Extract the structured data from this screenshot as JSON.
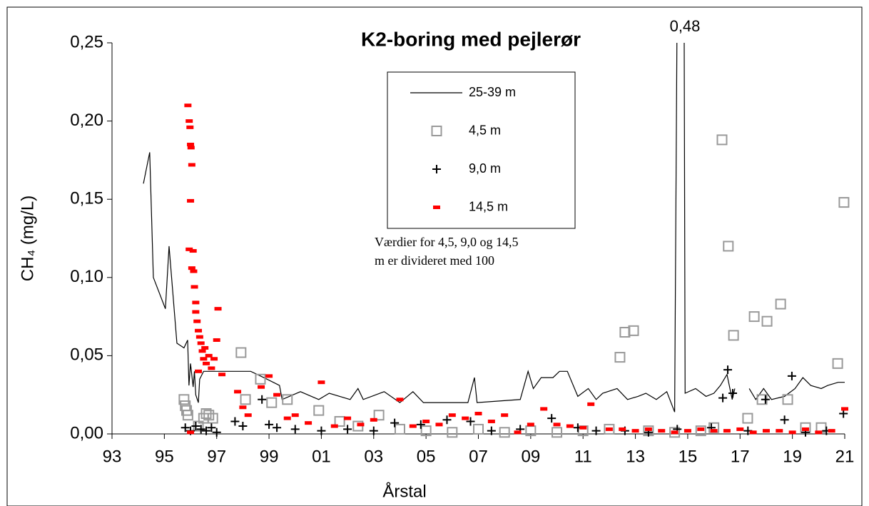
{
  "chart_data": {
    "type": "line",
    "title": "K2-boring med pejlerør",
    "x_label": "Årstal",
    "y_label": "CH₄ (mg/L)",
    "annotation": "0,48",
    "note": [
      "Værdier for 4,5, 9,0 og 14,5",
      "m er divideret med 100"
    ],
    "xlim": [
      1993,
      2021
    ],
    "xticks": [
      {
        "value": 1993,
        "label": "93"
      },
      {
        "value": 1995,
        "label": "95"
      },
      {
        "value": 1997,
        "label": "97"
      },
      {
        "value": 1999,
        "label": "99"
      },
      {
        "value": 2001,
        "label": "01"
      },
      {
        "value": 2003,
        "label": "03"
      },
      {
        "value": 2005,
        "label": "05"
      },
      {
        "value": 2007,
        "label": "07"
      },
      {
        "value": 2009,
        "label": "09"
      },
      {
        "value": 2011,
        "label": "11"
      },
      {
        "value": 2013,
        "label": "13"
      },
      {
        "value": 2015,
        "label": "15"
      },
      {
        "value": 2017,
        "label": "17"
      },
      {
        "value": 2019,
        "label": "19"
      },
      {
        "value": 2021,
        "label": "21"
      }
    ],
    "ylim": [
      0,
      0.25
    ],
    "yticks": [
      {
        "value": 0,
        "label": "0,00"
      },
      {
        "value": 0.05,
        "label": "0,05"
      },
      {
        "value": 0.1,
        "label": "0,10"
      },
      {
        "value": 0.15,
        "label": "0,15"
      },
      {
        "value": 0.2,
        "label": "0,20"
      },
      {
        "value": 0.25,
        "label": "0,25"
      }
    ],
    "grid": false,
    "series": [
      {
        "name": "25-39 m",
        "type": "line",
        "color": "#000000",
        "x": [
          1994.2,
          1994.44,
          1994.58,
          1995.04,
          1995.18,
          1995.48,
          1995.75,
          1995.89,
          1995.94,
          1996.0,
          1996.1,
          1996.15,
          1996.2,
          1996.3,
          1996.35,
          1996.5,
          1996.63,
          1998.3,
          1998.8,
          1999.4,
          1999.5,
          2000.2,
          2000.9,
          2001.3,
          2002.1,
          2002.4,
          2002.6,
          2003.4,
          2004.0,
          2004.5,
          2004.9,
          2006.6,
          2006.85,
          2006.95,
          2008.6,
          2008.9,
          2009.1,
          2009.4,
          2009.85,
          2010.1,
          2010.4,
          2010.8,
          2011.2,
          2011.5,
          2011.75,
          2012.3,
          2012.7,
          2013.1,
          2013.4,
          2013.8,
          2014.2,
          2014.5,
          2014.67,
          2014.83,
          2014.9,
          2015.3,
          2015.7,
          2016.0,
          2016.25,
          2016.5,
          2016.7,
          2016.8,
          2017.0,
          2017.35,
          2017.6,
          2017.9,
          2018.2,
          2018.7,
          2019.1,
          2019.4,
          2019.7,
          2020.1,
          2020.35,
          2020.75,
          2021.0
        ],
        "values": [
          0.16,
          0.18,
          0.1,
          0.08,
          0.12,
          0.058,
          0.055,
          0.06,
          0.031,
          0.045,
          0.03,
          0.04,
          0.025,
          0.02,
          0.035,
          0.04,
          0.04,
          0.04,
          0.036,
          0.031,
          0.022,
          0.027,
          0.022,
          0.026,
          0.022,
          0.029,
          0.022,
          0.027,
          0.02,
          0.027,
          0.02,
          0.02,
          0.036,
          0.02,
          0.022,
          0.04,
          0.029,
          0.036,
          0.036,
          0.04,
          0.04,
          0.024,
          0.029,
          0.022,
          0.026,
          0.029,
          0.022,
          0.024,
          0.026,
          0.022,
          0.027,
          0.014,
          0.48,
          0.48,
          0.026,
          0.029,
          0.024,
          0.026,
          0.031,
          0.038,
          0.022,
          0.029,
          null,
          0.029,
          0.022,
          0.029,
          0.022,
          0.024,
          0.029,
          0.036,
          0.031,
          0.029,
          0.031,
          0.033,
          0.033
        ]
      },
      {
        "name": "4,5 m",
        "type": "scatter",
        "marker": "square",
        "color": "#999999",
        "x": [
          1995.75,
          1995.8,
          1995.85,
          1995.9,
          1996.3,
          1996.5,
          1996.6,
          1996.7,
          1996.85,
          1997.93,
          1998.1,
          1998.67,
          1999.1,
          1999.7,
          2000.9,
          2001.7,
          2002.4,
          2003.2,
          2004.0,
          2005.0,
          2006.0,
          2007.0,
          2008.0,
          2009.0,
          2010.0,
          2011.0,
          2012.0,
          2012.41,
          2012.6,
          2012.93,
          2013.5,
          2014.5,
          2015.5,
          2016.0,
          2016.31,
          2016.55,
          2016.75,
          2017.29,
          2017.54,
          2018.03,
          2017.84,
          2018.55,
          2018.82,
          2019.5,
          2020.1,
          2020.73,
          2020.97
        ],
        "values": [
          0.022,
          0.018,
          0.015,
          0.012,
          0.005,
          0.01,
          0.013,
          0.012,
          0.01,
          0.052,
          0.022,
          0.035,
          0.02,
          0.022,
          0.015,
          0.008,
          0.005,
          0.012,
          0.003,
          0.002,
          0.001,
          0.003,
          0.001,
          0.002,
          0.001,
          0.002,
          0.003,
          0.049,
          0.065,
          0.066,
          0.002,
          0.001,
          0.002,
          0.004,
          0.188,
          0.12,
          0.063,
          0.01,
          0.075,
          0.072,
          0.022,
          0.083,
          0.022,
          0.004,
          0.004,
          0.045,
          0.148
        ]
      },
      {
        "name": "9,0 m",
        "type": "scatter",
        "marker": "plus",
        "color": "#000000",
        "x": [
          1995.8,
          1996.0,
          1996.2,
          1996.4,
          1996.6,
          1996.8,
          1997.0,
          1997.7,
          1998.0,
          1998.73,
          1999.0,
          1999.3,
          2000.0,
          2001.0,
          2002.0,
          2003.0,
          2003.8,
          2004.8,
          2005.8,
          2006.7,
          2007.5,
          2008.6,
          2009.8,
          2010.8,
          2011.5,
          2012.6,
          2013.5,
          2014.6,
          2015.9,
          2016.34,
          2016.53,
          2016.72,
          2017.3,
          2017.97,
          2018.7,
          2018.98,
          2019.5,
          2020.3,
          2020.95
        ],
        "values": [
          0.004,
          0.002,
          0.005,
          0.003,
          0.002,
          0.004,
          0.001,
          0.008,
          0.005,
          0.022,
          0.006,
          0.004,
          0.003,
          0.002,
          0.003,
          0.002,
          0.007,
          0.006,
          0.009,
          0.008,
          0.002,
          0.003,
          0.01,
          0.004,
          0.002,
          0.002,
          0.001,
          0.003,
          0.004,
          0.023,
          0.041,
          0.026,
          0.002,
          0.022,
          0.009,
          0.037,
          0.001,
          0.002,
          0.013
        ]
      },
      {
        "name": "14,5 m",
        "type": "scatter",
        "marker": "dash",
        "color": "#ff0000",
        "x": [
          1995.9,
          1995.95,
          1995.98,
          1996.0,
          1996.02,
          1996.05,
          1996.0,
          1995.95,
          1996.1,
          1996.05,
          1996.12,
          1996.15,
          1996.2,
          1996.2,
          1996.25,
          1996.3,
          1996.35,
          1996.4,
          1996.45,
          1996.5,
          1996.55,
          1996.6,
          1996.7,
          1996.8,
          1996.9,
          1997.0,
          1997.05,
          1997.2,
          1996.3,
          1996.0,
          1997.8,
          1998.0,
          1998.2,
          1998.7,
          1999.0,
          1999.3,
          1999.7,
          2000.0,
          2000.5,
          2001.0,
          2001.5,
          2002.0,
          2002.5,
          2003.0,
          2004.0,
          2004.5,
          2005.0,
          2005.5,
          2006.0,
          2006.5,
          2007.0,
          2007.5,
          2008.0,
          2008.5,
          2009.0,
          2009.5,
          2010.0,
          2010.5,
          2011.0,
          2011.3,
          2012.0,
          2012.5,
          2013.0,
          2013.5,
          2014.0,
          2014.5,
          2015.0,
          2015.5,
          2016.0,
          2016.5,
          2017.0,
          2017.5,
          2018.0,
          2018.5,
          2019.0,
          2019.5,
          2020.0,
          2020.5,
          2021.0
        ],
        "values": [
          0.21,
          0.2,
          0.196,
          0.185,
          0.183,
          0.172,
          0.149,
          0.118,
          0.117,
          0.106,
          0.104,
          0.094,
          0.084,
          0.078,
          0.072,
          0.066,
          0.062,
          0.058,
          0.053,
          0.048,
          0.055,
          0.045,
          0.05,
          0.042,
          0.048,
          0.06,
          0.08,
          0.038,
          0.04,
          0.001,
          0.027,
          0.017,
          0.012,
          0.03,
          0.037,
          0.025,
          0.01,
          0.012,
          0.007,
          0.033,
          0.005,
          0.01,
          0.006,
          0.009,
          0.022,
          0.005,
          0.008,
          0.006,
          0.012,
          0.01,
          0.013,
          0.008,
          0.012,
          0.001,
          0.006,
          0.016,
          0.006,
          0.005,
          0.004,
          0.019,
          0.003,
          0.003,
          0.002,
          0.003,
          0.002,
          0.001,
          0.002,
          0.003,
          0.002,
          0.002,
          0.003,
          0.001,
          0.002,
          0.002,
          0.001,
          0.003,
          0.001,
          0.002,
          0.016
        ]
      }
    ]
  }
}
